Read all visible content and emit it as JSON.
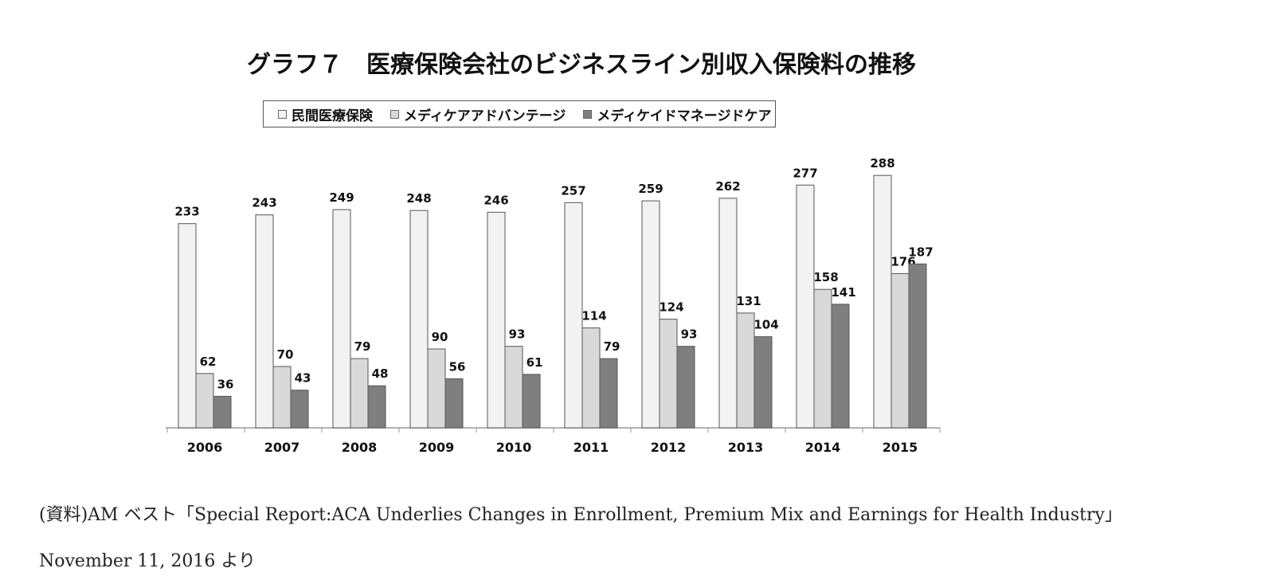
{
  "chart_data": {
    "type": "bar",
    "title": "グラフ７　医療保険会社のビジネスライン別収入保険料の推移",
    "categories": [
      "2006",
      "2007",
      "2008",
      "2009",
      "2010",
      "2011",
      "2012",
      "2013",
      "2014",
      "2015"
    ],
    "series": [
      {
        "name": "民間医療保険",
        "values": [
          233,
          243,
          249,
          248,
          246,
          257,
          259,
          262,
          277,
          288
        ],
        "color": "#f2f2f2"
      },
      {
        "name": "メディケアアドバンテージ",
        "values": [
          62,
          70,
          79,
          90,
          93,
          114,
          124,
          131,
          158,
          176
        ],
        "color": "#d9d9d9"
      },
      {
        "name": "メディケイドマネージドケア",
        "values": [
          36,
          43,
          48,
          56,
          61,
          79,
          93,
          104,
          141,
          187
        ],
        "color": "#7f7f7f"
      }
    ],
    "legend_position": "top",
    "grid": false,
    "data_labels": true,
    "ylim": [
      0,
      300
    ]
  },
  "source": {
    "line1": "(資料)AM ベスト「Special Report:ACA Underlies Changes in Enrollment, Premium Mix and Earnings for Health Industry」",
    "line2": "November 11, 2016 より"
  }
}
